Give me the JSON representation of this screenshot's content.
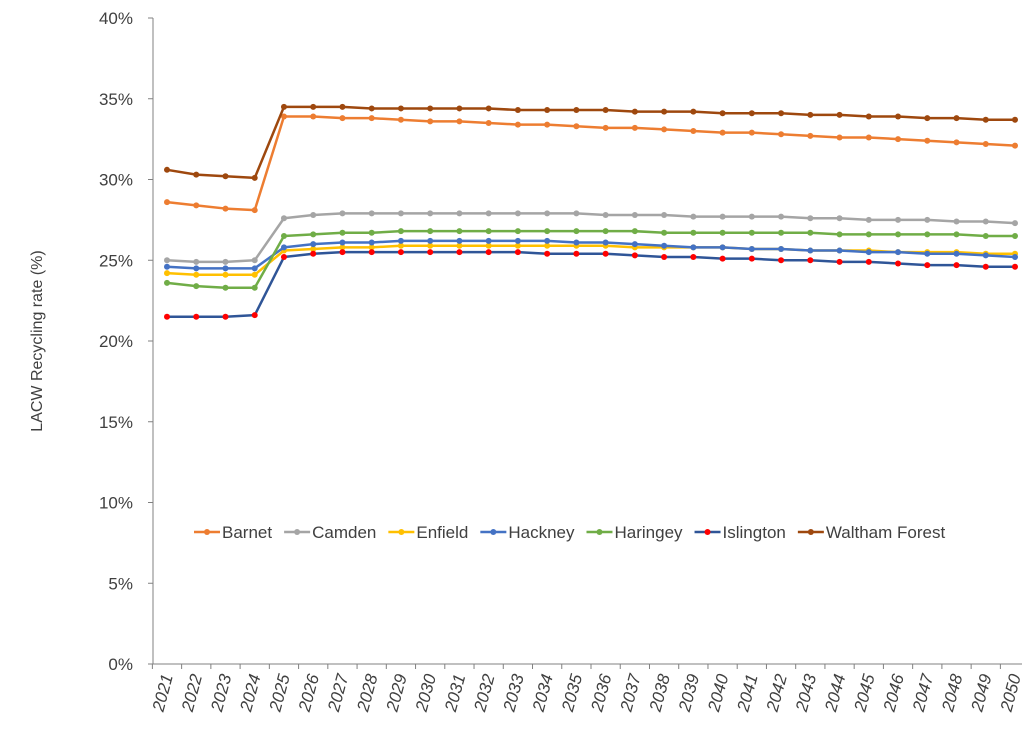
{
  "chart_data": {
    "type": "line",
    "title": "",
    "xlabel": "",
    "ylabel": "LACW Recycling rate (%)",
    "ylim": [
      0,
      40
    ],
    "yticks": [
      "0%",
      "5%",
      "10%",
      "15%",
      "20%",
      "25%",
      "30%",
      "35%",
      "40%"
    ],
    "ytick_values": [
      0,
      5,
      10,
      15,
      20,
      25,
      30,
      35,
      40
    ],
    "grid": false,
    "legend_position": "center-right",
    "x": [
      "2021",
      "2022",
      "2023",
      "2024",
      "2025",
      "2026",
      "2027",
      "2028",
      "2029",
      "2030",
      "2031",
      "2032",
      "2033",
      "2034",
      "2035",
      "2036",
      "2037",
      "2038",
      "2039",
      "2040",
      "2041",
      "2042",
      "2043",
      "2044",
      "2045",
      "2046",
      "2047",
      "2048",
      "2049",
      "2050"
    ],
    "series": [
      {
        "name": "Barnet",
        "color": "#ED7D31",
        "values": [
          28.6,
          28.4,
          28.2,
          28.1,
          33.9,
          33.9,
          33.8,
          33.8,
          33.7,
          33.6,
          33.6,
          33.5,
          33.4,
          33.4,
          33.3,
          33.2,
          33.2,
          33.1,
          33.0,
          32.9,
          32.9,
          32.8,
          32.7,
          32.6,
          32.6,
          32.5,
          32.4,
          32.3,
          32.2,
          32.1
        ]
      },
      {
        "name": "Camden",
        "color": "#A5A5A5",
        "values": [
          25.0,
          24.9,
          24.9,
          25.0,
          27.6,
          27.8,
          27.9,
          27.9,
          27.9,
          27.9,
          27.9,
          27.9,
          27.9,
          27.9,
          27.9,
          27.8,
          27.8,
          27.8,
          27.7,
          27.7,
          27.7,
          27.7,
          27.6,
          27.6,
          27.5,
          27.5,
          27.5,
          27.4,
          27.4,
          27.3
        ]
      },
      {
        "name": "Enfield",
        "color": "#FFC000",
        "values": [
          24.2,
          24.1,
          24.1,
          24.1,
          25.6,
          25.7,
          25.8,
          25.8,
          25.9,
          25.9,
          25.9,
          25.9,
          25.9,
          25.9,
          25.9,
          25.9,
          25.8,
          25.8,
          25.8,
          25.8,
          25.7,
          25.7,
          25.6,
          25.6,
          25.6,
          25.5,
          25.5,
          25.5,
          25.4,
          25.4
        ]
      },
      {
        "name": "Hackney",
        "color": "#4472C4",
        "values": [
          24.6,
          24.5,
          24.5,
          24.5,
          25.8,
          26.0,
          26.1,
          26.1,
          26.2,
          26.2,
          26.2,
          26.2,
          26.2,
          26.2,
          26.1,
          26.1,
          26.0,
          25.9,
          25.8,
          25.8,
          25.7,
          25.7,
          25.6,
          25.6,
          25.5,
          25.5,
          25.4,
          25.4,
          25.3,
          25.2
        ]
      },
      {
        "name": "Haringey",
        "color": "#70AD47",
        "values": [
          23.6,
          23.4,
          23.3,
          23.3,
          26.5,
          26.6,
          26.7,
          26.7,
          26.8,
          26.8,
          26.8,
          26.8,
          26.8,
          26.8,
          26.8,
          26.8,
          26.8,
          26.7,
          26.7,
          26.7,
          26.7,
          26.7,
          26.7,
          26.6,
          26.6,
          26.6,
          26.6,
          26.6,
          26.5,
          26.5
        ]
      },
      {
        "name": "Islington",
        "color": "#2F5597",
        "marker": "#FF0000",
        "values": [
          21.5,
          21.5,
          21.5,
          21.6,
          25.2,
          25.4,
          25.5,
          25.5,
          25.5,
          25.5,
          25.5,
          25.5,
          25.5,
          25.4,
          25.4,
          25.4,
          25.3,
          25.2,
          25.2,
          25.1,
          25.1,
          25.0,
          25.0,
          24.9,
          24.9,
          24.8,
          24.7,
          24.7,
          24.6,
          24.6
        ]
      },
      {
        "name": "Waltham Forest",
        "color": "#9E480E",
        "values": [
          30.6,
          30.3,
          30.2,
          30.1,
          34.5,
          34.5,
          34.5,
          34.4,
          34.4,
          34.4,
          34.4,
          34.4,
          34.3,
          34.3,
          34.3,
          34.3,
          34.2,
          34.2,
          34.2,
          34.1,
          34.1,
          34.1,
          34.0,
          34.0,
          33.9,
          33.9,
          33.8,
          33.8,
          33.7,
          33.7
        ]
      }
    ]
  }
}
